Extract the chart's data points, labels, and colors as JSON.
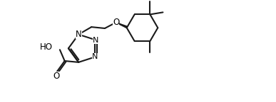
{
  "bg_color": "#ffffff",
  "line_color": "#1a1a1a",
  "line_width": 1.5,
  "font_size": 8.5,
  "xlim": [
    0,
    10
  ],
  "ylim": [
    0,
    3.8
  ],
  "figsize": [
    3.87,
    1.44
  ],
  "dpi": 100
}
